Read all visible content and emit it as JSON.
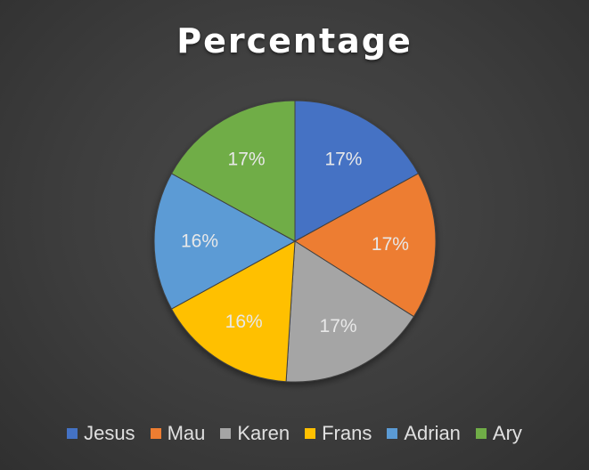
{
  "chart_data": {
    "type": "pie",
    "title": "Percentage",
    "categories": [
      "Jesus",
      "Mau",
      "Karen",
      "Frans",
      "Adrian",
      "Ary"
    ],
    "values": [
      17,
      17,
      17,
      16,
      16,
      17
    ],
    "labels": [
      "17%",
      "17%",
      "17%",
      "16%",
      "16%",
      "17%"
    ],
    "colors": [
      "#4472c4",
      "#ed7d31",
      "#a5a5a5",
      "#ffc000",
      "#5b9bd5",
      "#70ad47"
    ],
    "legend_position": "bottom"
  }
}
